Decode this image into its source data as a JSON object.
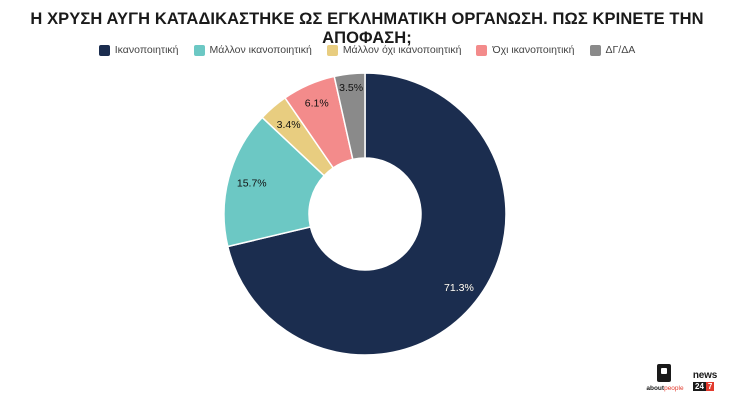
{
  "title": "Η ΧΡΥΣΗ ΑΥΓΗ ΚΑΤΑΔΙΚΑΣΤΗΚΕ ΩΣ ΕΓΚΛΗΜΑΤΙΚΗ ΟΡΓΑΝΩΣΗ. ΠΩΣ ΚΡΙΝΕΤΕ ΤΗΝ ΑΠΟΦΑΣΗ;",
  "chart_data": {
    "type": "pie",
    "variant": "donut",
    "title": "Η ΧΡΥΣΗ ΑΥΓΗ ΚΑΤΑΔΙΚΑΣΤΗΚΕ ΩΣ ΕΓΚΛΗΜΑΤΙΚΗ ΟΡΓΑΝΩΣΗ. ΠΩΣ ΚΡΙΝΕΤΕ ΤΗΝ ΑΠΟΦΑΣΗ;",
    "legend_position": "top",
    "slices": [
      {
        "label": "Ικανοποιητική",
        "value": 71.3,
        "display": "71.3%",
        "color": "#1b2d4f"
      },
      {
        "label": "Μάλλον ικανοποιητική",
        "value": 15.7,
        "display": "15.7%",
        "color": "#6cc8c4"
      },
      {
        "label": "Μάλλον όχι ικανοποιητική",
        "value": 3.4,
        "display": "3.4%",
        "color": "#e8cd80"
      },
      {
        "label": "Όχι ικανοποιητική",
        "value": 6.1,
        "display": "6.1%",
        "color": "#f38b8b"
      },
      {
        "label": "ΔΓ/ΔΑ",
        "value": 3.5,
        "display": "3.5%",
        "color": "#8a8a8a"
      }
    ]
  },
  "logos": {
    "aboutpeople": {
      "bold": "about",
      "rest": "people"
    },
    "news247": {
      "word": "news",
      "num_a": "24",
      "num_b": "7"
    }
  }
}
